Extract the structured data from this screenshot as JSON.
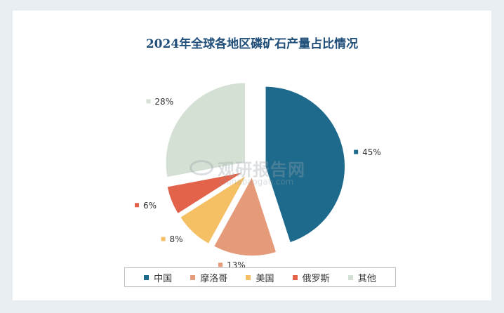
{
  "chart_data": {
    "type": "pie",
    "title": "2024年全球各地区磷矿石产量占比情况",
    "categories": [
      "中国",
      "摩洛哥",
      "美国",
      "俄罗斯",
      "其他"
    ],
    "values": [
      45,
      13,
      8,
      6,
      28
    ],
    "labels": [
      "45%",
      "13%",
      "8%",
      "6%",
      "28%"
    ],
    "colors": [
      "#1d6a8c",
      "#e59a79",
      "#f5bf63",
      "#e2624a",
      "#d3e0d3"
    ],
    "legend_position": "bottom",
    "exploded": true
  },
  "watermark": {
    "text_cn": "观研报告网",
    "text_en": "chinabaogao.com"
  }
}
